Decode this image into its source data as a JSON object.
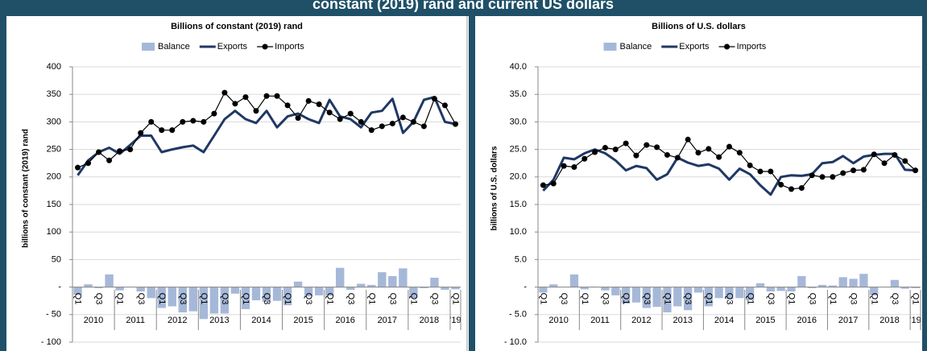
{
  "title": "constant (2019) rand and current US dollars",
  "chart_data": [
    {
      "type": "combo",
      "title": "Billions of constant (2019) rand",
      "y_label": "billions of constant (2019) rand",
      "categories": [
        "Q1",
        null,
        "Q3",
        null,
        "Q1",
        null,
        "Q3",
        null,
        "Q1",
        null,
        "Q3",
        null,
        "Q1",
        null,
        "Q3",
        null,
        "Q1",
        null,
        "Q3",
        null,
        "Q1",
        null,
        "Q3",
        null,
        "Q1",
        null,
        "Q3",
        null,
        "Q1",
        null,
        "Q3",
        null,
        "Q1",
        null,
        "Q3",
        null,
        "Q1"
      ],
      "years": [
        "2010",
        "2011",
        "2012",
        "2013",
        "2014",
        "2015",
        "2016",
        "2017",
        "2018",
        "'19"
      ],
      "ylim": [
        -100,
        400
      ],
      "yticks": [
        {
          "value": -100,
          "label": "- 100"
        },
        {
          "value": -50,
          "label": "- 50"
        },
        {
          "value": 0,
          "label": "-"
        },
        50,
        100,
        150,
        200,
        250,
        300,
        350,
        400
      ],
      "grid": true,
      "series": [
        {
          "name": "Balance",
          "type": "bar",
          "color": "#a6b8d8",
          "values": [
            -14,
            5,
            -2,
            23,
            -6,
            0,
            -8,
            -20,
            -38,
            -35,
            -46,
            -44,
            -58,
            -48,
            -48,
            -12,
            -40,
            -24,
            -27,
            -25,
            -33,
            10,
            -17,
            -15,
            -16,
            35,
            -5,
            6,
            4,
            27,
            20,
            34,
            -20,
            -2,
            17,
            -5,
            -4
          ]
        },
        {
          "name": "Exports",
          "type": "line",
          "color": "#1f3864",
          "values": [
            203,
            230,
            245,
            253,
            242,
            258,
            275,
            275,
            245,
            250,
            254,
            257,
            245,
            275,
            305,
            320,
            305,
            298,
            320,
            290,
            310,
            315,
            305,
            298,
            340,
            310,
            305,
            290,
            317,
            320,
            342,
            280,
            300,
            340,
            345,
            300,
            296
          ]
        },
        {
          "name": "Imports",
          "type": "line",
          "marker": "circle",
          "color": "#000000",
          "values": [
            217,
            225,
            245,
            230,
            247,
            250,
            280,
            300,
            285,
            285,
            300,
            302,
            300,
            315,
            353,
            333,
            345,
            320,
            347,
            347,
            330,
            307,
            338,
            332,
            317,
            305,
            315,
            300,
            285,
            292,
            297,
            308,
            300,
            292,
            342,
            330,
            296
          ]
        }
      ]
    },
    {
      "type": "combo",
      "title": "Billions of U.S. dollars",
      "y_label": "billions of U.S. dollars",
      "categories": [
        "Q1",
        null,
        "Q3",
        null,
        "Q1",
        null,
        "Q3",
        null,
        "Q1",
        null,
        "Q3",
        null,
        "Q1",
        null,
        "Q3",
        null,
        "Q1",
        null,
        "Q3",
        null,
        "Q1",
        null,
        "Q3",
        null,
        "Q1",
        null,
        "Q3",
        null,
        "Q1",
        null,
        "Q3",
        null,
        "Q1",
        null,
        "Q3",
        null,
        "Q1"
      ],
      "years": [
        "2010",
        "2011",
        "2012",
        "2013",
        "2014",
        "2015",
        "2016",
        "2017",
        "2018",
        "'19"
      ],
      "ylim": [
        -10,
        40
      ],
      "yticks": [
        {
          "value": -10,
          "label": "- 10.0"
        },
        {
          "value": -5,
          "label": "- 5.0"
        },
        {
          "value": 0,
          "label": "-"
        },
        {
          "value": 5,
          "label": "5.0"
        },
        {
          "value": 10,
          "label": "10.0"
        },
        {
          "value": 15,
          "label": "15.0"
        },
        {
          "value": 20,
          "label": "20.0"
        },
        {
          "value": 25,
          "label": "25.0"
        },
        {
          "value": 30,
          "label": "30.0"
        },
        {
          "value": 35,
          "label": "35.0"
        },
        {
          "value": 40,
          "label": "40.0"
        }
      ],
      "grid": true,
      "series": [
        {
          "name": "Balance",
          "type": "bar",
          "color": "#a6b8d8",
          "values": [
            -1.0,
            0.5,
            0.0,
            2.3,
            -0.4,
            0.1,
            -0.6,
            -1.5,
            -3.0,
            -2.8,
            -3.8,
            -3.6,
            -4.6,
            -3.5,
            -4.2,
            -1.0,
            -3.5,
            -2.0,
            -2.2,
            -2.0,
            -2.4,
            0.7,
            -0.8,
            -0.7,
            -0.8,
            2.0,
            -0.2,
            0.4,
            0.3,
            1.8,
            1.5,
            2.4,
            -1.5,
            0.0,
            1.3,
            -0.3,
            -0.2
          ]
        },
        {
          "name": "Exports",
          "type": "line",
          "color": "#1f3864",
          "values": [
            17.5,
            19.5,
            23.5,
            23.2,
            24.3,
            25.0,
            24.3,
            23.0,
            21.2,
            22.0,
            21.6,
            19.5,
            20.5,
            23.5,
            22.6,
            22.0,
            22.3,
            21.5,
            19.5,
            21.5,
            20.5,
            18.5,
            16.8,
            20.0,
            20.3,
            20.2,
            20.5,
            22.5,
            22.7,
            23.8,
            22.5,
            23.7,
            24.0,
            24.2,
            24.2,
            21.3,
            21.2
          ]
        },
        {
          "name": "Imports",
          "type": "line",
          "marker": "circle",
          "color": "#000000",
          "values": [
            18.5,
            18.8,
            22.0,
            21.8,
            23.3,
            24.5,
            25.3,
            25.0,
            26.1,
            23.9,
            25.8,
            25.4,
            24.0,
            23.5,
            26.8,
            24.4,
            25.1,
            23.6,
            25.5,
            24.4,
            22.1,
            21.0,
            21.0,
            18.6,
            17.8,
            18.0,
            20.3,
            20.0,
            20.0,
            20.7,
            21.2,
            21.3,
            24.1,
            22.5,
            24.0,
            22.9,
            21.2
          ]
        }
      ]
    }
  ]
}
